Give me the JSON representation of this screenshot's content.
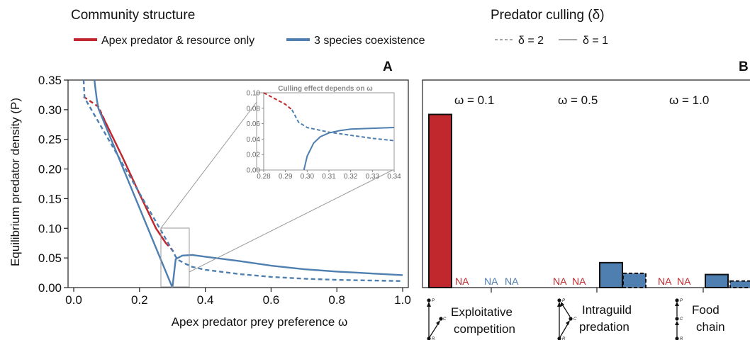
{
  "legend": {
    "community_title": "Community structure",
    "community_items": [
      {
        "label": "Apex predator & resource only",
        "color": "#c0282d"
      },
      {
        "label": "3 species coexistence",
        "color": "#4e7fb0"
      }
    ],
    "culling_title": "Predator culling (δ)",
    "culling_items": [
      {
        "label": "δ = 2",
        "dash": true
      },
      {
        "label": "δ = 1",
        "dash": false
      }
    ]
  },
  "panel_a": {
    "letter": "A",
    "xlabel": "Apex predator prey preference ω",
    "ylabel": "Equilibrium predator density (P)",
    "x_ticks": [
      "0.0",
      "0.2",
      "0.4",
      "0.6",
      "0.8",
      "1.0"
    ],
    "y_ticks": [
      "0.00",
      "0.05",
      "0.10",
      "0.15",
      "0.20",
      "0.25",
      "0.30",
      "0.35"
    ],
    "inset": {
      "title": "Culling effect depends on ω",
      "x_ticks": [
        "0.28",
        "0.29",
        "0.30",
        "0.31",
        "0.32",
        "0.33",
        "0.34"
      ],
      "y_ticks": [
        "0.00",
        "0.02",
        "0.04",
        "0.06",
        "0.08",
        "0.10"
      ]
    }
  },
  "panel_b": {
    "letter": "B",
    "omega_labels": [
      "ω = 0.1",
      "ω = 0.5",
      "ω = 1.0"
    ],
    "na_labels": [
      {
        "text": "NA",
        "color": "#c0282d"
      },
      {
        "text": "NA",
        "color": "#4e7fb0"
      },
      {
        "text": "NA",
        "color": "#4e7fb0"
      },
      {
        "text": "NA",
        "color": "#c0282d"
      },
      {
        "text": "NA",
        "color": "#c0282d"
      },
      {
        "text": "NA",
        "color": "#c0282d"
      },
      {
        "text": "NA",
        "color": "#c0282d"
      }
    ],
    "modules": [
      {
        "line1": "Exploitative",
        "line2": "competition"
      },
      {
        "line1": "Intraguild",
        "line2": "predation"
      },
      {
        "line1": "Food",
        "line2": "chain"
      }
    ],
    "node_letters": [
      "P",
      "C",
      "R"
    ]
  },
  "chart_data": [
    {
      "type": "line",
      "title": "",
      "xlabel": "Apex predator prey preference ω",
      "ylabel": "Equilibrium predator density (P)",
      "xlim": [
        0,
        1
      ],
      "ylim": [
        0,
        0.35
      ],
      "series": [
        {
          "name": "Apex predator & resource only",
          "style": "δ = 1",
          "color": "#c0282d",
          "x": [
            0.075,
            0.1,
            0.15,
            0.2,
            0.25,
            0.28
          ],
          "y": [
            0.302,
            0.275,
            0.218,
            0.158,
            0.1,
            0.075
          ]
        },
        {
          "name": "Apex predator & resource only",
          "style": "δ = 2",
          "color": "#c0282d",
          "x": [
            0.03,
            0.075,
            0.1,
            0.15,
            0.2,
            0.25,
            0.28,
            0.305
          ],
          "y": [
            0.322,
            0.305,
            0.275,
            0.218,
            0.158,
            0.1,
            0.075,
            0.06
          ]
        },
        {
          "name": "3 species coexistence",
          "style": "δ = 1",
          "color": "#4e7fb0",
          "x": [
            0.063,
            0.065,
            0.07,
            0.075,
            0.3,
            0.31,
            0.33,
            0.36,
            0.4,
            0.5,
            0.6,
            0.7,
            0.8,
            0.9,
            1.0
          ],
          "y": [
            0.35,
            0.34,
            0.318,
            0.302,
            0.0,
            0.048,
            0.054,
            0.055,
            0.052,
            0.045,
            0.037,
            0.031,
            0.027,
            0.024,
            0.021
          ]
        },
        {
          "name": "3 species coexistence",
          "style": "δ = 2",
          "color": "#4e7fb0",
          "x": [
            0.03,
            0.033,
            0.305,
            0.31,
            0.32,
            0.34,
            0.36,
            0.4,
            0.5,
            0.6,
            0.7,
            0.8,
            0.9,
            1.0
          ],
          "y": [
            0.35,
            0.32,
            0.058,
            0.052,
            0.046,
            0.04,
            0.035,
            0.03,
            0.023,
            0.018,
            0.015,
            0.013,
            0.012,
            0.011
          ]
        }
      ],
      "inset": {
        "xlim": [
          0.28,
          0.34
        ],
        "ylim": [
          0,
          0.1
        ],
        "series": [
          {
            "name": "Apex predator & resource only",
            "style": "δ = 2",
            "color": "#c0282d",
            "x": [
              0.28,
              0.29,
              0.293
            ],
            "y": [
              0.1,
              0.085,
              0.078
            ]
          },
          {
            "name": "3 species coexistence",
            "style": "δ = 2",
            "color": "#4e7fb0",
            "x": [
              0.293,
              0.296,
              0.3,
              0.305,
              0.31,
              0.32,
              0.33,
              0.34
            ],
            "y": [
              0.078,
              0.062,
              0.055,
              0.052,
              0.049,
              0.045,
              0.041,
              0.038
            ]
          },
          {
            "name": "3 species coexistence",
            "style": "δ = 1",
            "color": "#4e7fb0",
            "x": [
              0.2985,
              0.3,
              0.303,
              0.306,
              0.31,
              0.315,
              0.32,
              0.33,
              0.34
            ],
            "y": [
              0.0,
              0.018,
              0.035,
              0.043,
              0.048,
              0.051,
              0.053,
              0.054,
              0.055
            ]
          }
        ]
      }
    },
    {
      "type": "bar",
      "title": "",
      "xlabel": "",
      "ylabel": "",
      "ylim": [
        0,
        0.35
      ],
      "categories": [
        "ω = 0.1",
        "ω = 0.5",
        "ω = 1.0"
      ],
      "bars": [
        {
          "group": "ω = 0.1",
          "series": "Apex predator & resource only",
          "style": "δ = 1",
          "value": 0.292,
          "color": "#c0282d"
        },
        {
          "group": "ω = 0.5",
          "series": "3 species coexistence",
          "style": "δ = 1",
          "value": 0.042,
          "color": "#4e7fb0"
        },
        {
          "group": "ω = 0.5",
          "series": "3 species coexistence",
          "style": "δ = 2",
          "value": 0.024,
          "color": "#4e7fb0"
        },
        {
          "group": "ω = 1.0",
          "series": "3 species coexistence",
          "style": "δ = 1",
          "value": 0.022,
          "color": "#4e7fb0"
        },
        {
          "group": "ω = 1.0",
          "series": "3 species coexistence",
          "style": "δ = 2",
          "value": 0.011,
          "color": "#4e7fb0"
        }
      ]
    }
  ]
}
